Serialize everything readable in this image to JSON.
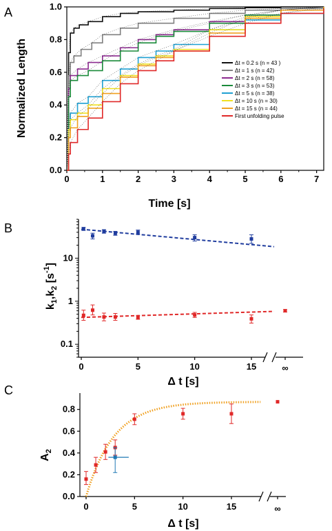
{
  "chart_data": [
    {
      "panel": "A",
      "type": "line",
      "xlabel": "Time [s]",
      "ylabel": "Normalized Length",
      "xlim": [
        0,
        7.2
      ],
      "ylim": [
        0,
        1.0
      ],
      "xticks": [
        "0",
        "1",
        "2",
        "3",
        "4",
        "5",
        "6",
        "7"
      ],
      "yticks": [
        "0.0",
        "0.2",
        "0.4",
        "0.6",
        "0.8",
        "1.0"
      ],
      "legend_position": "right",
      "series": [
        {
          "name": "Δt = 0.2 s (n = 43 )",
          "color": "#111111",
          "x": [
            0,
            0.05,
            0.1,
            0.2,
            0.35,
            0.6,
            1.0,
            1.5,
            2.0,
            3.0,
            4.0,
            5.0,
            6.0,
            7.2
          ],
          "y": [
            0,
            0.72,
            0.84,
            0.87,
            0.89,
            0.91,
            0.94,
            0.96,
            0.97,
            0.98,
            0.99,
            0.995,
            1.0,
            1.0
          ]
        },
        {
          "name": "Δt = 1 s (n = 42)",
          "color": "#808080",
          "x": [
            0,
            0.05,
            0.1,
            0.2,
            0.4,
            0.7,
            1.0,
            1.5,
            2.0,
            3.0,
            4.0,
            5.0,
            6.0,
            7.2
          ],
          "y": [
            0,
            0.58,
            0.66,
            0.7,
            0.74,
            0.78,
            0.83,
            0.87,
            0.9,
            0.93,
            0.96,
            0.98,
            0.99,
            1.0
          ]
        },
        {
          "name": "Δt = 2 s (n = 58)",
          "color": "#8b2a8f",
          "x": [
            0,
            0.05,
            0.1,
            0.3,
            0.6,
            1.0,
            1.5,
            2.0,
            2.5,
            3.0,
            4.0,
            5.0,
            6.0,
            7.2
          ],
          "y": [
            0,
            0.5,
            0.58,
            0.62,
            0.66,
            0.7,
            0.75,
            0.8,
            0.83,
            0.86,
            0.91,
            0.95,
            0.98,
            1.0
          ]
        },
        {
          "name": "Δt = 3 s (n = 53)",
          "color": "#1a8a3a",
          "x": [
            0,
            0.05,
            0.1,
            0.3,
            0.6,
            1.0,
            1.5,
            2.0,
            2.5,
            3.0,
            4.0,
            5.0,
            6.0,
            7.2
          ],
          "y": [
            0,
            0.45,
            0.55,
            0.58,
            0.61,
            0.67,
            0.73,
            0.78,
            0.82,
            0.85,
            0.9,
            0.95,
            0.98,
            1.0
          ]
        },
        {
          "name": "Δt = 5 s (n = 38)",
          "color": "#1ea0d2",
          "x": [
            0,
            0.05,
            0.1,
            0.3,
            0.6,
            1.0,
            1.5,
            2.0,
            2.5,
            3.0,
            4.0,
            5.0,
            6.0,
            7.2
          ],
          "y": [
            0,
            0.25,
            0.35,
            0.41,
            0.45,
            0.55,
            0.62,
            0.69,
            0.73,
            0.77,
            0.86,
            0.92,
            0.96,
            1.0
          ]
        },
        {
          "name": "Δt = 10 s (n = 30)",
          "color": "#f0e020",
          "x": [
            0,
            0.05,
            0.1,
            0.3,
            0.6,
            1.0,
            1.5,
            2.0,
            2.5,
            3.0,
            4.0,
            5.0,
            6.0,
            7.2
          ],
          "y": [
            0,
            0.25,
            0.31,
            0.35,
            0.4,
            0.5,
            0.58,
            0.65,
            0.7,
            0.74,
            0.86,
            0.94,
            0.98,
            1.0
          ]
        },
        {
          "name": "Δt = 15 s (n = 44)",
          "color": "#f0a020",
          "x": [
            0,
            0.05,
            0.1,
            0.3,
            0.6,
            1.0,
            1.5,
            2.0,
            2.5,
            3.0,
            4.0,
            5.0,
            6.0,
            7.2
          ],
          "y": [
            0,
            0.2,
            0.26,
            0.33,
            0.38,
            0.47,
            0.57,
            0.64,
            0.69,
            0.73,
            0.84,
            0.93,
            0.98,
            1.0
          ]
        },
        {
          "name": "First unfolding pulse",
          "color": "#e02828",
          "x": [
            0,
            0.05,
            0.1,
            0.3,
            0.6,
            1.0,
            1.5,
            2.0,
            2.5,
            3.0,
            4.0,
            5.0,
            6.0,
            7.2
          ],
          "y": [
            0,
            0.1,
            0.17,
            0.25,
            0.32,
            0.42,
            0.53,
            0.61,
            0.67,
            0.73,
            0.82,
            0.9,
            0.96,
            0.99
          ]
        }
      ]
    },
    {
      "panel": "B",
      "type": "scatter",
      "xlabel": "Δ t [s]",
      "ylabel_main": "k",
      "ylabel_sub1": "1",
      "ylabel_mid": ",k",
      "ylabel_sub2": "2",
      "ylabel_tail": "  [s",
      "ylabel_sup": "-1",
      "ylabel_end": "]",
      "yscale": "log",
      "xlim": [
        0,
        17
      ],
      "ylim": [
        0.05,
        80
      ],
      "xticks": [
        "0",
        "5",
        "10",
        "15",
        "∞"
      ],
      "yticks": [
        "0.1",
        "1",
        "10"
      ],
      "series": [
        {
          "name": "k1",
          "color": "#1f3c9e",
          "x": [
            0.2,
            1,
            2,
            3,
            5,
            10,
            15,
            "inf"
          ],
          "y": [
            48,
            33,
            42,
            38,
            40,
            30,
            28,
            null
          ],
          "yerr_low": [
            44,
            28,
            38,
            34,
            36,
            25,
            22,
            null
          ],
          "yerr_high": [
            52,
            38,
            46,
            42,
            45,
            35,
            35,
            null
          ],
          "fit": {
            "x": [
              0,
              17
            ],
            "y": [
              47,
              18.5
            ],
            "style": "dashed"
          }
        },
        {
          "name": "k2",
          "color": "#e02828",
          "x": [
            0.2,
            1,
            2,
            3,
            5,
            10,
            15,
            "inf"
          ],
          "y": [
            0.47,
            0.62,
            0.43,
            0.43,
            0.42,
            0.48,
            0.39,
            0.6
          ],
          "yerr_low": [
            0.36,
            0.48,
            0.35,
            0.36,
            0.38,
            0.42,
            0.31,
            0.56
          ],
          "yerr_high": [
            0.62,
            0.82,
            0.53,
            0.52,
            0.46,
            0.55,
            0.48,
            0.64
          ],
          "fit": {
            "x": [
              0,
              17
            ],
            "y": [
              0.42,
              0.58
            ],
            "style": "dashed"
          }
        }
      ]
    },
    {
      "panel": "C",
      "type": "scatter",
      "xlabel": "Δ t [s]",
      "ylabel_main": "A",
      "ylabel_sub": "2",
      "xlim": [
        -0.5,
        18.5
      ],
      "ylim": [
        0,
        0.95
      ],
      "xticks": [
        "0",
        "5",
        "10",
        "15",
        "∞"
      ],
      "yticks": [
        "0.0",
        "0.2",
        "0.4",
        "0.6",
        "0.8"
      ],
      "series": [
        {
          "name": "A2",
          "color": "#e02828",
          "x": [
            0,
            1,
            2,
            3,
            5,
            10,
            15,
            "inf"
          ],
          "y": [
            0.16,
            0.29,
            0.41,
            0.45,
            0.71,
            0.76,
            0.76,
            0.87
          ],
          "yerr_low": [
            0.11,
            0.22,
            0.34,
            0.38,
            0.66,
            0.71,
            0.67,
            0.87
          ],
          "yerr_high": [
            0.23,
            0.36,
            0.48,
            0.52,
            0.76,
            0.81,
            0.85,
            0.87
          ]
        },
        {
          "name": "blue point",
          "color": "#1e78b4",
          "x": [
            3
          ],
          "y": [
            0.36
          ],
          "yerr_low": [
            0.22
          ],
          "yerr_high": [
            0.45
          ],
          "xerr_low": [
            2.3
          ],
          "xerr_high": [
            4.4
          ]
        }
      ],
      "fit": {
        "color": "#f0a020",
        "style": "dotted",
        "plateau": 0.87,
        "rate": 0.35
      }
    }
  ],
  "panel_labels": [
    "A",
    "B",
    "C"
  ]
}
